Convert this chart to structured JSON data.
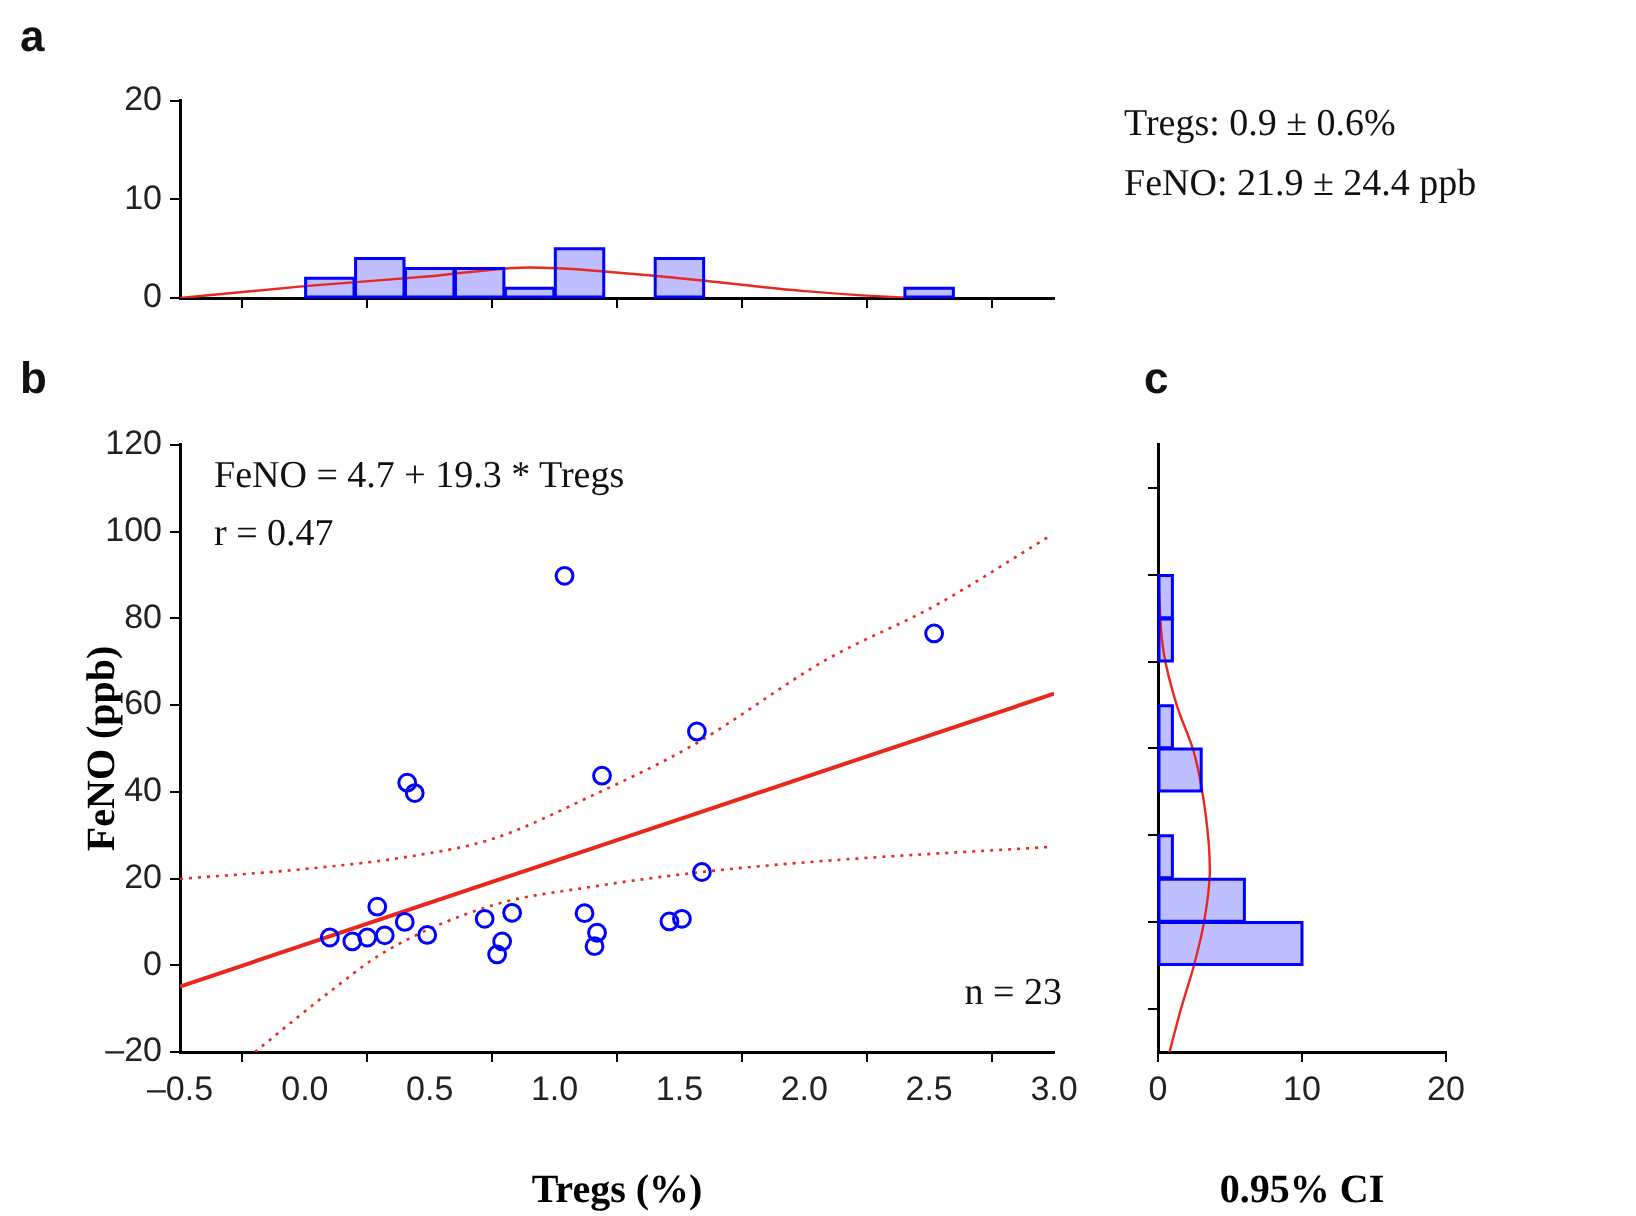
{
  "chart_data": [
    {
      "type": "histogram",
      "title": "a",
      "series": [
        {
          "bins": [
            0,
            0.2,
            0.4,
            0.6,
            0.8,
            1.0,
            1.2,
            1.4,
            1.6,
            1.8,
            2.0,
            2.2,
            2.4,
            2.6
          ],
          "values": [
            2,
            4,
            3,
            3,
            1,
            5,
            0,
            4,
            0,
            0,
            0,
            0,
            1
          ],
          "color": "#0000ff"
        },
        {
          "type": "line",
          "color": "#e8281e",
          "x": [
            -0.5,
            0.0,
            0.5,
            0.9,
            1.5,
            2.0,
            2.5,
            2.6
          ],
          "values": [
            0,
            1.2,
            2.2,
            3.1,
            2.0,
            0.7,
            0,
            0
          ]
        }
      ],
      "xlim": [
        -0.5,
        3.0
      ],
      "xticks": [
        {
          "value": -0.5,
          "label": null
        },
        {
          "value": 0,
          "label": null
        },
        {
          "value": 0.5,
          "label": null
        },
        {
          "value": 1.0,
          "label": null
        },
        {
          "value": 1.5,
          "label": null
        },
        {
          "value": 2.0,
          "label": null
        },
        {
          "value": 2.5,
          "label": null
        },
        {
          "value": 3.0,
          "label": null
        }
      ],
      "ylim": [
        0,
        20
      ],
      "yticks": [
        0,
        10,
        20
      ],
      "tick_labels": "y",
      "annotations": [
        "Tregs: 0.9 ± 0.6%",
        "FeNO: 21.9 ± 24.4 ppb"
      ]
    },
    {
      "type": "scatter",
      "title": "b",
      "xlabel": "Tregs (%)",
      "ylabel": "FeNO (ppb)",
      "series": [
        {
          "marker": "circle",
          "color": "#0000ff",
          "x": [
            0.1,
            0.19,
            0.25,
            0.32,
            0.29,
            0.4,
            0.41,
            0.44,
            0.49,
            0.72,
            0.79,
            0.77,
            0.83,
            1.04,
            1.12,
            1.19,
            1.17,
            1.16,
            1.46,
            1.51,
            1.57,
            1.59,
            2.52
          ],
          "values": [
            6.4,
            5.5,
            6.4,
            6.9,
            13.5,
            10.0,
            42.1,
            39.7,
            7.0,
            10.7,
            5.5,
            2.5,
            12.1,
            89.8,
            12.0,
            43.7,
            7.5,
            4.4,
            10.1,
            10.7,
            53.9,
            21.5,
            76.5
          ]
        },
        {
          "type": "line",
          "color": "#e8281e",
          "line_style": "solid",
          "x": [
            -0.5,
            3.0
          ],
          "values": [
            -4.9,
            62.6
          ]
        },
        {
          "type": "line",
          "color": "#e8281e",
          "line_style": "dotted",
          "x": [
            -0.5,
            0.0,
            0.41,
            0.75,
            1.15,
            1.55,
            2.09,
            2.52,
            2.99
          ],
          "values": [
            19.9,
            22.2,
            25.0,
            29.1,
            39.1,
            50.6,
            70.5,
            82.8,
            99.2
          ]
        },
        {
          "type": "line",
          "color": "#e8281e",
          "line_style": "dotted",
          "x": [
            -0.2,
            0.1,
            0.32,
            0.75,
            1.15,
            1.59,
            2.09,
            2.99
          ],
          "values": [
            -20,
            -6.1,
            3.1,
            13.8,
            18.1,
            21.5,
            24.1,
            27.3
          ]
        }
      ],
      "xlim": [
        -0.5,
        3.0
      ],
      "xticks": [
        {
          "value": -0.5,
          "label": "–0.5"
        },
        {
          "value": 0,
          "label": "0.0"
        },
        {
          "value": 0.5,
          "label": "0.5"
        },
        {
          "value": 1.0,
          "label": "1.0"
        },
        {
          "value": 1.5,
          "label": "1.5"
        },
        {
          "value": 2.0,
          "label": "2.0"
        },
        {
          "value": 2.5,
          "label": "2.5"
        },
        {
          "value": 3.0,
          "label": "3.0"
        }
      ],
      "ylim": [
        -20,
        120
      ],
      "yticks": [
        {
          "value": -20,
          "label": "–20"
        },
        0,
        20,
        40,
        60,
        80,
        100,
        120
      ],
      "annotations": [
        "FeNO = 4.7 + 19.3 * Tregs",
        "r = 0.47",
        "n = 23"
      ]
    },
    {
      "type": "histogram",
      "title": "c",
      "xlabel": "0.95% CI",
      "orientation": "horizontal",
      "series": [
        {
          "bins": [
            0,
            10,
            20,
            30,
            40,
            50,
            60,
            70,
            80,
            90
          ],
          "values": [
            10,
            6,
            1,
            0,
            3,
            1,
            0,
            1,
            1
          ],
          "color": "#0000ff"
        },
        {
          "type": "line",
          "color": "#e8281e",
          "x": [
            -20,
            -10,
            0,
            10,
            22,
            35,
            49,
            60,
            72,
            90
          ],
          "values": [
            0.8,
            1.6,
            2.5,
            3.2,
            3.6,
            3.3,
            2.5,
            1.3,
            0.4,
            0
          ]
        }
      ],
      "xlim": [
        0,
        20
      ],
      "xticks": [
        0,
        10,
        20
      ],
      "ylim": [
        -20,
        120
      ],
      "yticks": [
        {
          "value": -20,
          "label": null
        },
        {
          "value": 0,
          "label": null
        },
        {
          "value": 20,
          "label": null
        },
        {
          "value": 40,
          "label": null
        },
        {
          "value": 60,
          "label": null
        },
        {
          "value": 80,
          "label": null
        },
        {
          "value": 100,
          "label": null
        },
        {
          "value": 120,
          "label": null
        }
      ],
      "tick_labels": "x"
    }
  ]
}
